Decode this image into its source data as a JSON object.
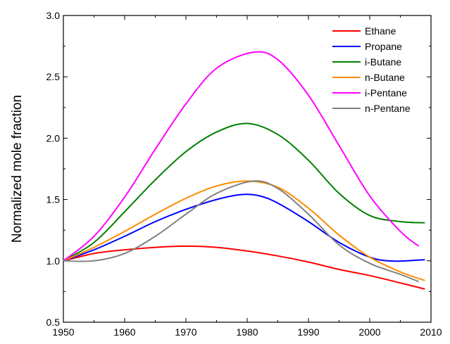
{
  "chart_data": {
    "type": "line",
    "title": "",
    "xlabel": "",
    "ylabel": "Normalized mole fraction",
    "xlim": [
      1950,
      2010
    ],
    "ylim": [
      0.5,
      3.0
    ],
    "xticks": [
      "1950",
      "1960",
      "1970",
      "1980",
      "1990",
      "2000",
      "2010"
    ],
    "yticks": [
      "0.5",
      "1.0",
      "1.5",
      "2.0",
      "2.5",
      "3.0"
    ],
    "grid": false,
    "legend_position": "top-right",
    "series": [
      {
        "name": "Ethane",
        "color": "#ff0000",
        "x": [
          1950,
          1955,
          1960,
          1965,
          1970,
          1975,
          1980,
          1985,
          1990,
          1995,
          2000,
          2005,
          2009
        ],
        "values": [
          1.0,
          1.06,
          1.09,
          1.11,
          1.12,
          1.11,
          1.08,
          1.04,
          0.99,
          0.93,
          0.88,
          0.82,
          0.77
        ]
      },
      {
        "name": "Propane",
        "color": "#0000ff",
        "x": [
          1950,
          1955,
          1960,
          1965,
          1970,
          1975,
          1979,
          1982,
          1985,
          1990,
          1995,
          2000,
          2003,
          2006,
          2009
        ],
        "values": [
          1.0,
          1.09,
          1.2,
          1.32,
          1.42,
          1.5,
          1.54,
          1.53,
          1.47,
          1.32,
          1.15,
          1.03,
          1.0,
          1.0,
          1.01
        ]
      },
      {
        "name": "i-Butane",
        "color": "#008000",
        "x": [
          1950,
          1955,
          1960,
          1965,
          1970,
          1975,
          1980,
          1985,
          1990,
          1995,
          2000,
          2005,
          2009
        ],
        "values": [
          1.0,
          1.15,
          1.4,
          1.66,
          1.89,
          2.05,
          2.12,
          2.03,
          1.82,
          1.55,
          1.37,
          1.32,
          1.31
        ]
      },
      {
        "name": "n-Butane",
        "color": "#ff8c00",
        "x": [
          1950,
          1955,
          1960,
          1965,
          1970,
          1975,
          1980,
          1985,
          1990,
          1995,
          2000,
          2005,
          2009
        ],
        "values": [
          1.0,
          1.11,
          1.24,
          1.38,
          1.51,
          1.61,
          1.65,
          1.6,
          1.43,
          1.21,
          1.03,
          0.91,
          0.84
        ]
      },
      {
        "name": "i-Pentane",
        "color": "#ff00ff",
        "x": [
          1950,
          1955,
          1960,
          1965,
          1970,
          1975,
          1981,
          1985,
          1990,
          1995,
          2000,
          2005,
          2008
        ],
        "values": [
          1.0,
          1.2,
          1.52,
          1.91,
          2.28,
          2.57,
          2.7,
          2.64,
          2.35,
          1.94,
          1.53,
          1.24,
          1.12
        ]
      },
      {
        "name": "n-Pentane",
        "color": "#808080",
        "x": [
          1950,
          1955,
          1960,
          1965,
          1970,
          1975,
          1981,
          1985,
          1990,
          1995,
          2000,
          2005,
          2008
        ],
        "values": [
          1.0,
          1.0,
          1.06,
          1.2,
          1.38,
          1.55,
          1.65,
          1.59,
          1.38,
          1.13,
          0.98,
          0.89,
          0.83
        ]
      }
    ]
  }
}
